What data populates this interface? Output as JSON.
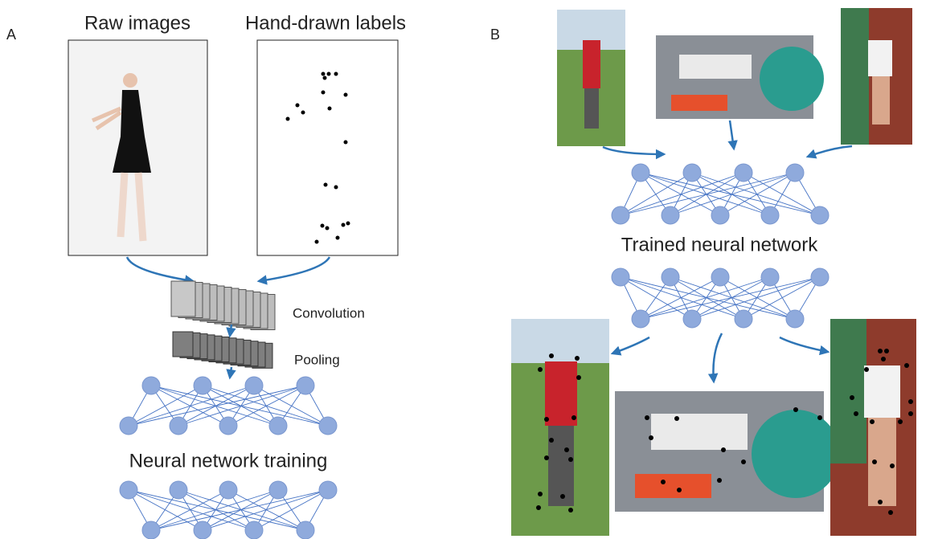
{
  "panel_a": {
    "label": "A",
    "raw_images": "Raw images",
    "hand_drawn_labels": "Hand-drawn labels",
    "convolution": "Convolution",
    "pooling": "Pooling",
    "training": "Neural network training"
  },
  "panel_b": {
    "label": "B",
    "trained": "Trained neural network"
  }
}
